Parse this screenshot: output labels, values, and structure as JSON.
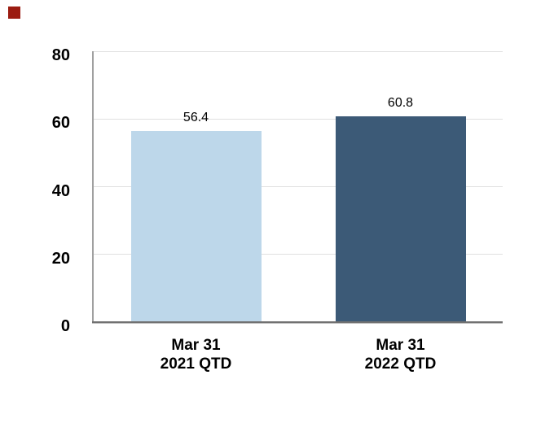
{
  "page": {
    "background": "#ffffff"
  },
  "corner_marker": {
    "color": "#9b1c11"
  },
  "chart_data": {
    "type": "bar",
    "categories": [
      "Mar 31\n2021 QTD",
      "Mar 31\n2022 QTD"
    ],
    "values": [
      56.4,
      60.8
    ],
    "value_labels": [
      "56.4",
      "60.8"
    ],
    "bar_colors": [
      "#bdd7ea",
      "#3c5a77"
    ],
    "yticks": [
      0,
      20,
      40,
      60,
      80
    ],
    "ylim": [
      0,
      80
    ],
    "title": "",
    "xlabel": "",
    "ylabel": "",
    "grid": true,
    "legend": false,
    "colors": {
      "gridline": "#e0e0e0",
      "y_axis_line": "#a0a0a0",
      "x_axis_line": "#717171",
      "label_text": "#000000"
    }
  }
}
